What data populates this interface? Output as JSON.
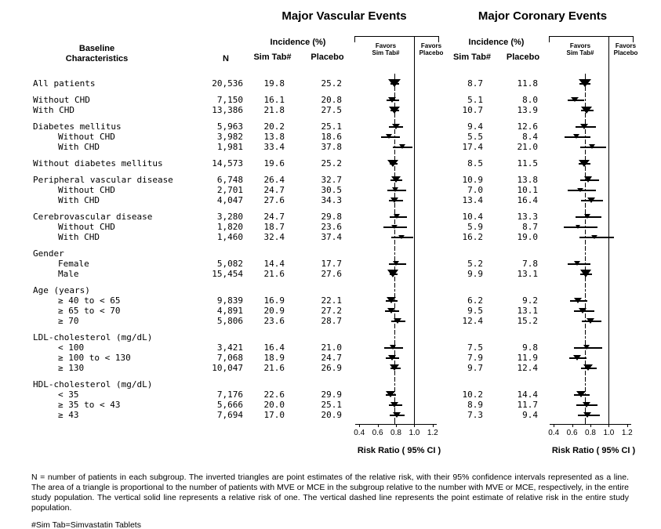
{
  "headers": {
    "baseline_line1": "Baseline",
    "baseline_line2": "Characteristics",
    "n": "N",
    "incidence": "Incidence (%)",
    "sim": "Sim Tab#",
    "placebo": "Placebo",
    "favors_sim": [
      "Favors",
      "Sim Tab#"
    ],
    "favors_placebo": [
      "Favors",
      "Placebo"
    ]
  },
  "footnotes": {
    "main": "N = number of patients in each subgroup. The inverted triangles are point estimates of the relative risk, with their 95% confidence intervals represented as a line. The area of a triangle is proportional to the number of patients with MVE or MCE in the subgroup relative to the number with MVE or MCE, respectively, in the entire study population. The vertical solid line represents a relative risk of one. The vertical dashed line represents the point estimate of relative risk in the entire study population.",
    "simtab": "#Sim Tab=Simvastatin Tablets"
  },
  "chart_data": {
    "type": "scatter",
    "subtype": "forest-plot",
    "titles": {
      "mve": "Major Vascular Events",
      "mce": "Major Coronary Events"
    },
    "axis": {
      "label": "Risk Ratio ( 95% CI )",
      "ticks": [
        0.4,
        0.6,
        0.8,
        1.0,
        1.2
      ],
      "tick_labels": [
        "0.4",
        "0.6",
        "0.8",
        "1.0",
        "1.2"
      ],
      "xlim": [
        0.33,
        1.27
      ]
    },
    "reference_lines": {
      "solid_at": 1.0,
      "dashed_mve": 0.78,
      "dashed_mce": 0.74
    },
    "rows": [
      {
        "label": "All patients",
        "n": "20,536",
        "mve": {
          "sim": "19.8",
          "plc": "25.2",
          "rr": 0.78,
          "lo": 0.74,
          "hi": 0.83
        },
        "mce": {
          "sim": "8.7",
          "plc": "11.8",
          "rr": 0.74,
          "lo": 0.68,
          "hi": 0.8
        }
      },
      {
        "gap": true
      },
      {
        "label": "Without CHD",
        "n": "7,150",
        "mve": {
          "sim": "16.1",
          "plc": "20.8",
          "rr": 0.76,
          "lo": 0.7,
          "hi": 0.83
        },
        "mce": {
          "sim": "5.1",
          "plc": "8.0",
          "rr": 0.63,
          "lo": 0.55,
          "hi": 0.73
        }
      },
      {
        "label": "With CHD",
        "n": "13,386",
        "mve": {
          "sim": "21.8",
          "plc": "27.5",
          "rr": 0.78,
          "lo": 0.74,
          "hi": 0.83
        },
        "mce": {
          "sim": "10.7",
          "plc": "13.9",
          "rr": 0.76,
          "lo": 0.7,
          "hi": 0.83
        }
      },
      {
        "gap": true
      },
      {
        "label": "Diabetes mellitus",
        "n": "5,963",
        "mve": {
          "sim": "20.2",
          "plc": "25.1",
          "rr": 0.8,
          "lo": 0.72,
          "hi": 0.88
        },
        "mce": {
          "sim": "9.4",
          "plc": "12.6",
          "rr": 0.74,
          "lo": 0.64,
          "hi": 0.86
        }
      },
      {
        "label": "Without CHD",
        "indent": 1,
        "n": "3,982",
        "mve": {
          "sim": "13.8",
          "plc": "18.6",
          "rr": 0.73,
          "lo": 0.64,
          "hi": 0.84
        },
        "mce": {
          "sim": "5.5",
          "plc": "8.4",
          "rr": 0.65,
          "lo": 0.52,
          "hi": 0.8
        }
      },
      {
        "label": "With CHD",
        "indent": 1,
        "n": "1,981",
        "mve": {
          "sim": "33.4",
          "plc": "37.8",
          "rr": 0.87,
          "lo": 0.77,
          "hi": 0.98
        },
        "mce": {
          "sim": "17.4",
          "plc": "21.0",
          "rr": 0.82,
          "lo": 0.69,
          "hi": 0.97
        }
      },
      {
        "gap": true
      },
      {
        "label": "Without diabetes mellitus",
        "n": "14,573",
        "mve": {
          "sim": "19.6",
          "plc": "25.2",
          "rr": 0.77,
          "lo": 0.73,
          "hi": 0.82
        },
        "mce": {
          "sim": "8.5",
          "plc": "11.5",
          "rr": 0.73,
          "lo": 0.67,
          "hi": 0.8
        }
      },
      {
        "gap": true
      },
      {
        "label": "Peripheral vascular disease",
        "n": "6,748",
        "mve": {
          "sim": "26.4",
          "plc": "32.7",
          "rr": 0.8,
          "lo": 0.74,
          "hi": 0.87
        },
        "mce": {
          "sim": "10.9",
          "plc": "13.8",
          "rr": 0.78,
          "lo": 0.69,
          "hi": 0.89
        }
      },
      {
        "label": "Without CHD",
        "indent": 1,
        "n": "2,701",
        "mve": {
          "sim": "24.7",
          "plc": "30.5",
          "rr": 0.8,
          "lo": 0.71,
          "hi": 0.91
        },
        "mce": {
          "sim": "7.0",
          "plc": "10.1",
          "rr": 0.69,
          "lo": 0.55,
          "hi": 0.86
        }
      },
      {
        "label": "With CHD",
        "indent": 1,
        "n": "4,047",
        "mve": {
          "sim": "27.6",
          "plc": "34.3",
          "rr": 0.79,
          "lo": 0.72,
          "hi": 0.88
        },
        "mce": {
          "sim": "13.4",
          "plc": "16.4",
          "rr": 0.81,
          "lo": 0.7,
          "hi": 0.94
        }
      },
      {
        "gap": true
      },
      {
        "label": "Cerebrovascular disease",
        "n": "3,280",
        "mve": {
          "sim": "24.7",
          "plc": "29.8",
          "rr": 0.82,
          "lo": 0.73,
          "hi": 0.92
        },
        "mce": {
          "sim": "10.4",
          "plc": "13.3",
          "rr": 0.77,
          "lo": 0.64,
          "hi": 0.92
        }
      },
      {
        "label": "Without CHD",
        "indent": 1,
        "n": "1,820",
        "mve": {
          "sim": "18.7",
          "plc": "23.6",
          "rr": 0.78,
          "lo": 0.66,
          "hi": 0.92
        },
        "mce": {
          "sim": "5.9",
          "plc": "8.7",
          "rr": 0.67,
          "lo": 0.51,
          "hi": 0.88
        }
      },
      {
        "label": "With CHD",
        "indent": 1,
        "n": "1,460",
        "mve": {
          "sim": "32.4",
          "plc": "37.4",
          "rr": 0.86,
          "lo": 0.75,
          "hi": 0.99
        },
        "mce": {
          "sim": "16.2",
          "plc": "19.0",
          "rr": 0.85,
          "lo": 0.68,
          "hi": 1.06
        }
      },
      {
        "gap": true
      },
      {
        "label": "Gender",
        "group": true
      },
      {
        "label": "Female",
        "indent": 1,
        "n": "5,082",
        "mve": {
          "sim": "14.4",
          "plc": "17.7",
          "rr": 0.81,
          "lo": 0.72,
          "hi": 0.91
        },
        "mce": {
          "sim": "5.2",
          "plc": "7.8",
          "rr": 0.66,
          "lo": 0.55,
          "hi": 0.8
        }
      },
      {
        "label": "Male",
        "indent": 1,
        "n": "15,454",
        "mve": {
          "sim": "21.6",
          "plc": "27.6",
          "rr": 0.77,
          "lo": 0.73,
          "hi": 0.82
        },
        "mce": {
          "sim": "9.9",
          "plc": "13.1",
          "rr": 0.75,
          "lo": 0.69,
          "hi": 0.82
        }
      },
      {
        "gap": true
      },
      {
        "label": "Age (years)",
        "group": true
      },
      {
        "label": "≥ 40 to < 65",
        "indent": 1,
        "n": "9,839",
        "mve": {
          "sim": "16.9",
          "plc": "22.1",
          "rr": 0.75,
          "lo": 0.69,
          "hi": 0.82
        },
        "mce": {
          "sim": "6.2",
          "plc": "9.2",
          "rr": 0.67,
          "lo": 0.58,
          "hi": 0.77
        }
      },
      {
        "label": "≥ 65 to < 70",
        "indent": 1,
        "n": "4,891",
        "mve": {
          "sim": "20.9",
          "plc": "27.2",
          "rr": 0.75,
          "lo": 0.68,
          "hi": 0.83
        },
        "mce": {
          "sim": "9.5",
          "plc": "13.1",
          "rr": 0.72,
          "lo": 0.62,
          "hi": 0.84
        }
      },
      {
        "label": "≥ 70",
        "indent": 1,
        "n": "5,806",
        "mve": {
          "sim": "23.6",
          "plc": "28.7",
          "rr": 0.82,
          "lo": 0.75,
          "hi": 0.9
        },
        "mce": {
          "sim": "12.4",
          "plc": "15.2",
          "rr": 0.81,
          "lo": 0.71,
          "hi": 0.92
        }
      },
      {
        "gap": true
      },
      {
        "label": "LDL-cholesterol (mg/dL)",
        "group": true
      },
      {
        "label": "< 100",
        "indent": 1,
        "n": "3,421",
        "mve": {
          "sim": "16.4",
          "plc": "21.0",
          "rr": 0.77,
          "lo": 0.67,
          "hi": 0.88
        },
        "mce": {
          "sim": "7.5",
          "plc": "9.8",
          "rr": 0.76,
          "lo": 0.62,
          "hi": 0.93
        }
      },
      {
        "label": "≥ 100 to < 130",
        "indent": 1,
        "n": "7,068",
        "mve": {
          "sim": "18.9",
          "plc": "24.7",
          "rr": 0.76,
          "lo": 0.69,
          "hi": 0.83
        },
        "mce": {
          "sim": "7.9",
          "plc": "11.9",
          "rr": 0.66,
          "lo": 0.57,
          "hi": 0.76
        }
      },
      {
        "label": "≥ 130",
        "indent": 1,
        "n": "10,047",
        "mve": {
          "sim": "21.6",
          "plc": "26.9",
          "rr": 0.79,
          "lo": 0.74,
          "hi": 0.85
        },
        "mce": {
          "sim": "9.7",
          "plc": "12.4",
          "rr": 0.78,
          "lo": 0.7,
          "hi": 0.87
        }
      },
      {
        "gap": true
      },
      {
        "label": "HDL-cholesterol (mg/dL)",
        "group": true
      },
      {
        "label": "< 35",
        "indent": 1,
        "n": "7,176",
        "mve": {
          "sim": "22.6",
          "plc": "29.9",
          "rr": 0.74,
          "lo": 0.69,
          "hi": 0.8
        },
        "mce": {
          "sim": "10.2",
          "plc": "14.4",
          "rr": 0.7,
          "lo": 0.62,
          "hi": 0.79
        }
      },
      {
        "label": "≥ 35 to < 43",
        "indent": 1,
        "n": "5,666",
        "mve": {
          "sim": "20.0",
          "plc": "25.1",
          "rr": 0.79,
          "lo": 0.72,
          "hi": 0.87
        },
        "mce": {
          "sim": "8.9",
          "plc": "11.7",
          "rr": 0.76,
          "lo": 0.65,
          "hi": 0.88
        }
      },
      {
        "label": "≥ 43",
        "indent": 1,
        "n": "7,694",
        "mve": {
          "sim": "17.0",
          "plc": "20.9",
          "rr": 0.81,
          "lo": 0.73,
          "hi": 0.89
        },
        "mce": {
          "sim": "7.3",
          "plc": "9.4",
          "rr": 0.77,
          "lo": 0.66,
          "hi": 0.9
        }
      }
    ]
  }
}
